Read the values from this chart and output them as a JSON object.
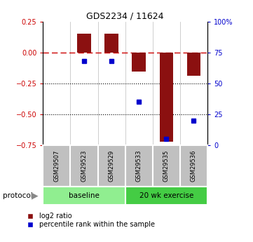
{
  "title": "GDS2234 / 11624",
  "samples": [
    "GSM29507",
    "GSM29523",
    "GSM29529",
    "GSM29533",
    "GSM29535",
    "GSM29536"
  ],
  "log2_ratio": [
    0.0,
    0.155,
    0.155,
    -0.155,
    -0.72,
    -0.185
  ],
  "percentile_rank": [
    null,
    68,
    68,
    35,
    5,
    20
  ],
  "ylim_left": [
    -0.75,
    0.25
  ],
  "ylim_right": [
    0,
    100
  ],
  "yticks_left": [
    -0.75,
    -0.5,
    -0.25,
    0,
    0.25
  ],
  "yticks_right": [
    0,
    25,
    50,
    75,
    100
  ],
  "ytick_labels_right": [
    "0",
    "25",
    "50",
    "75",
    "100%"
  ],
  "bar_color": "#8B1010",
  "dot_color": "#0000CD",
  "dashed_line_color": "#CC0000",
  "dotted_line_color": "#000000",
  "protocol_groups": [
    {
      "label": "baseline",
      "start": 0,
      "end": 2,
      "color": "#90EE90"
    },
    {
      "label": "20 wk exercise",
      "start": 3,
      "end": 5,
      "color": "#44CC44"
    }
  ],
  "protocol_label": "protocol",
  "legend_items": [
    {
      "label": "log2 ratio",
      "color": "#8B1010"
    },
    {
      "label": "percentile rank within the sample",
      "color": "#0000CD"
    }
  ],
  "bar_width": 0.5,
  "sample_box_color": "#C0C0C0",
  "figsize": [
    3.61,
    3.45
  ],
  "dpi": 100
}
